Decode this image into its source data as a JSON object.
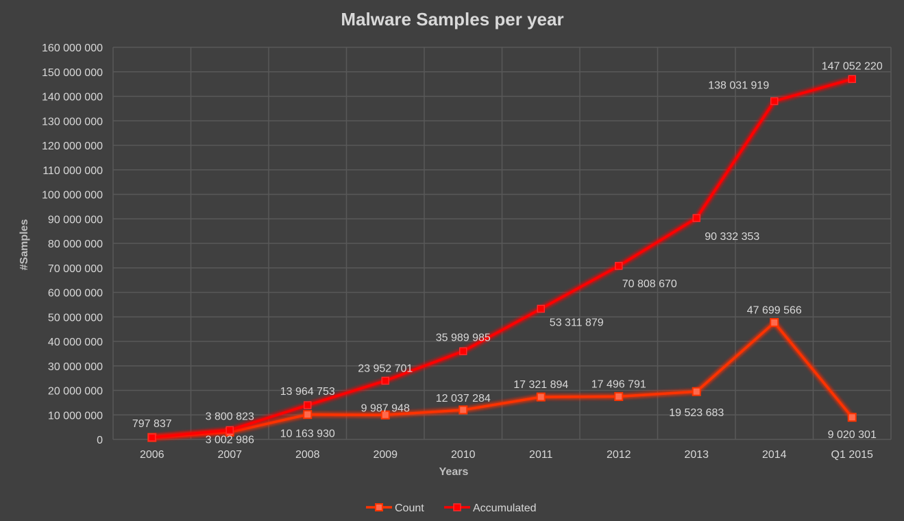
{
  "chart_data": {
    "type": "line",
    "title": "Malware Samples per year",
    "xlabel": "Years",
    "ylabel": "#Samples",
    "ylim": [
      0,
      160000000
    ],
    "y_ticks": [
      "0",
      "10 000 000",
      "20 000 000",
      "30 000 000",
      "40 000 000",
      "50 000 000",
      "60 000 000",
      "70 000 000",
      "80 000 000",
      "90 000 000",
      "100 000 000",
      "110 000 000",
      "120 000 000",
      "130 000 000",
      "140 000 000",
      "150 000 000",
      "160 000 000"
    ],
    "categories": [
      "2006",
      "2007",
      "2008",
      "2009",
      "2010",
      "2011",
      "2012",
      "2013",
      "2014",
      "Q1 2015"
    ],
    "grid": true,
    "legend_position": "bottom",
    "series": [
      {
        "name": "Count",
        "color": "#ff3300",
        "marker": "square-hollow",
        "values": [
          797837,
          3002986,
          10163930,
          9987948,
          12037284,
          17321894,
          17496791,
          19523683,
          47699566,
          9020301
        ],
        "labels": [
          "797 837",
          "3 002 986",
          "10 163 930",
          "9 987 948",
          "12 037 284",
          "17 321 894",
          "17 496 791",
          "19 523 683",
          "47 699 566",
          "9 020 301"
        ]
      },
      {
        "name": "Accumulated",
        "color": "#ff0000",
        "marker": "square-filled",
        "values": [
          797837,
          3800823,
          13964753,
          23952701,
          35989985,
          53311879,
          70808670,
          90332353,
          138031919,
          147052220
        ],
        "labels": [
          "797 837",
          "3 800 823",
          "13 964 753",
          "23 952 701",
          "35 989 985",
          "53 311 879",
          "70 808 670",
          "90 332 353",
          "138 031 919",
          "147 052 220"
        ]
      }
    ]
  }
}
